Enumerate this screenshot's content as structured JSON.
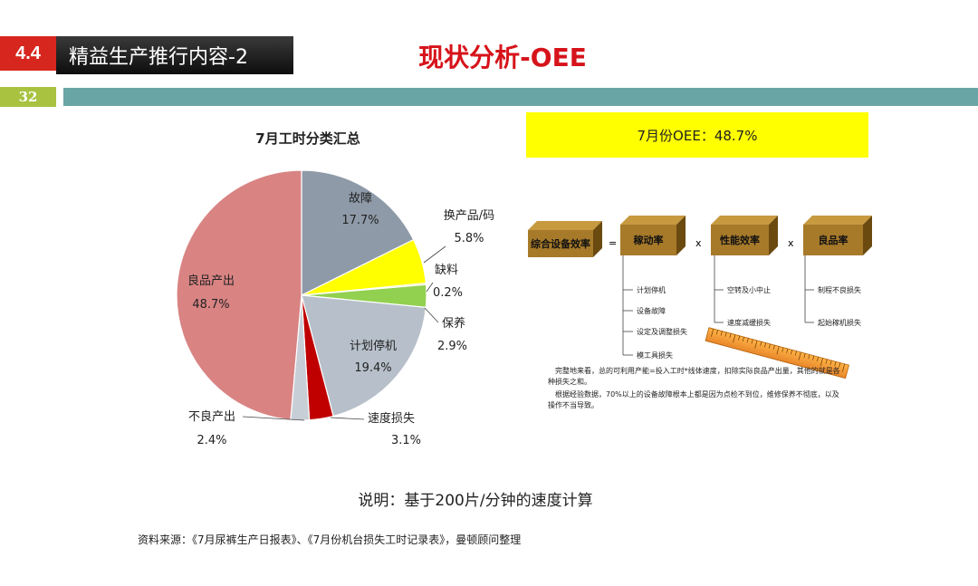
{
  "header": {
    "section_number": "4.4",
    "section_title": "精益生产推行内容-2",
    "heading": "现状分析-OEE",
    "page_number": "32"
  },
  "chart_data": {
    "type": "pie",
    "title": "7月工时分类汇总",
    "slices": [
      {
        "name": "故障",
        "value": 17.7,
        "label": "17.7%",
        "color": "#8e9aa8"
      },
      {
        "name": "换产品/码",
        "value": 5.8,
        "label": "5.8%",
        "color": "#ffff00"
      },
      {
        "name": "缺料",
        "value": 0.2,
        "label": "0.2%",
        "color": "#e6c84a"
      },
      {
        "name": "保养",
        "value": 2.9,
        "label": "2.9%",
        "color": "#92d050"
      },
      {
        "name": "计划停机",
        "value": 19.4,
        "label": "19.4%",
        "color": "#b7c0ca"
      },
      {
        "name": "速度损失",
        "value": 3.1,
        "label": "3.1%",
        "color": "#c00000"
      },
      {
        "name": "不良产出",
        "value": 2.4,
        "label": "2.4%",
        "color": "#c8ced6"
      },
      {
        "name": "良品产出",
        "value": 48.7,
        "label": "48.7%",
        "color": "#d98383"
      }
    ]
  },
  "oee": {
    "summary": "7月份OEE：48.7%",
    "boxes": {
      "oee": "综合设备效率",
      "availability": "稼动率",
      "performance": "性能效率",
      "quality": "良品率"
    },
    "operators": {
      "eq": "=",
      "x1": "x",
      "x2": "x"
    },
    "availability_items": [
      "计划停机",
      "设备故障",
      "设定及调整损失",
      "模工具损失"
    ],
    "performance_items": [
      "空转及小中止",
      "速度减缓损失"
    ],
    "quality_items": [
      "制程不良损失",
      "起始稼机损失"
    ],
    "notes": [
      "完整地来看，总的可利用产能=投入工时*线体速度，扣除实际良品产出量，其他的就是各",
      "种损失之和。",
      "根据经验数据，70%以上的设备故障根本上都是因为点检不到位，维修保养不彻底，以及",
      "操作不当导致。"
    ]
  },
  "explanation": "说明：基于200片/分钟的速度计算",
  "source": "资料来源：《7月尿裤生产日报表》、《7月份机台损失工时记录表》，曼顿顾问整理"
}
